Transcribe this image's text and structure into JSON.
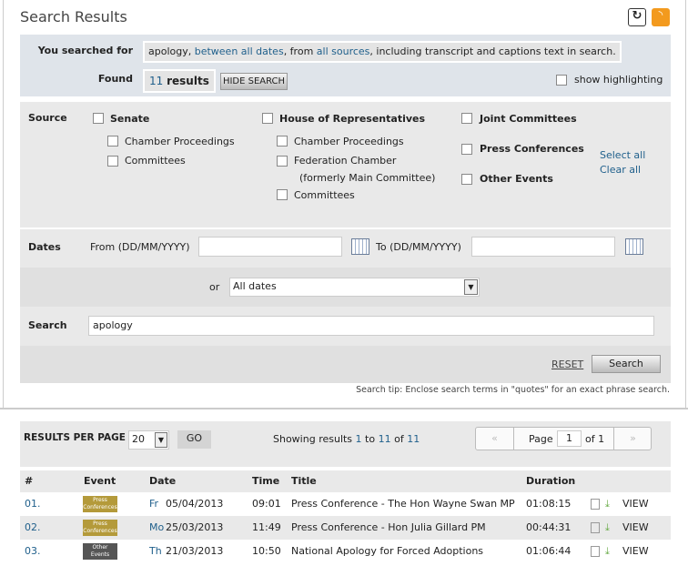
{
  "header": {
    "title": "Search Results",
    "refresh_icon": "refresh-icon",
    "rss_icon": "rss-icon"
  },
  "summary": {
    "searched_label": "You searched for",
    "query": "apology",
    "sep1": ", ",
    "dates_link": "between all dates",
    "from_text": ", from ",
    "sources_link": "all sources",
    "rest": ", including transcript and captions text in search.",
    "found_label": "Found",
    "count": "11",
    "results_word": "results",
    "hide_search": "HIDE SEARCH",
    "show_highlighting": "show highlighting"
  },
  "source": {
    "label": "Source",
    "senate": "Senate",
    "senate_items": [
      "Chamber Proceedings",
      "Committees"
    ],
    "house": "House of Representatives",
    "house_items": [
      "Chamber Proceedings",
      "Federation Chamber",
      "(formerly Main Committee)",
      "Committees"
    ],
    "joint": "Joint Committees",
    "press": "Press Conferences",
    "other": "Other Events",
    "select_all": "Select all",
    "clear_all": "Clear all"
  },
  "dates": {
    "label": "Dates",
    "from_label": "From (DD/MM/YYYY)",
    "to_label": "To (DD/MM/YYYY)",
    "from_value": "",
    "to_value": "",
    "or": "or",
    "range": "All dates"
  },
  "search": {
    "label": "Search",
    "value": "apology",
    "reset": "RESET",
    "submit": "Search",
    "tip": "Search tip: Enclose search terms in \"quotes\" for an exact phrase search."
  },
  "results_bar": {
    "per_page_label": "RESULTS PER PAGE",
    "per_page": "20",
    "go": "GO",
    "showing": "Showing results ",
    "from": "1",
    "to_word": " to ",
    "to": "11",
    "of_word": " of ",
    "total": "11",
    "page_label": "Page",
    "page": "1",
    "of_pages": "of 1"
  },
  "table": {
    "headers": [
      "#",
      "Event",
      "Date",
      "Time",
      "Title",
      "Duration"
    ],
    "rows": [
      {
        "num": "01.",
        "event": "Press Conferences",
        "event_color": "#b49a3a",
        "day": "Fr",
        "date": "05/04/2013",
        "time": "09:01",
        "title": "Press Conference - The Hon Wayne Swan MP",
        "duration": "01:08:15",
        "view": "VIEW"
      },
      {
        "num": "02.",
        "event": "Press Conferences",
        "event_color": "#b49a3a",
        "day": "Mo",
        "date": "25/03/2013",
        "time": "11:49",
        "title": "Press Conference - Hon Julia Gillard PM",
        "duration": "00:44:31",
        "view": "VIEW"
      },
      {
        "num": "03.",
        "event": "Other Events",
        "event_color": "#555555",
        "day": "Th",
        "date": "21/03/2013",
        "time": "10:50",
        "title": "National Apology for Forced Adoptions",
        "duration": "01:06:44",
        "view": "VIEW"
      }
    ]
  }
}
